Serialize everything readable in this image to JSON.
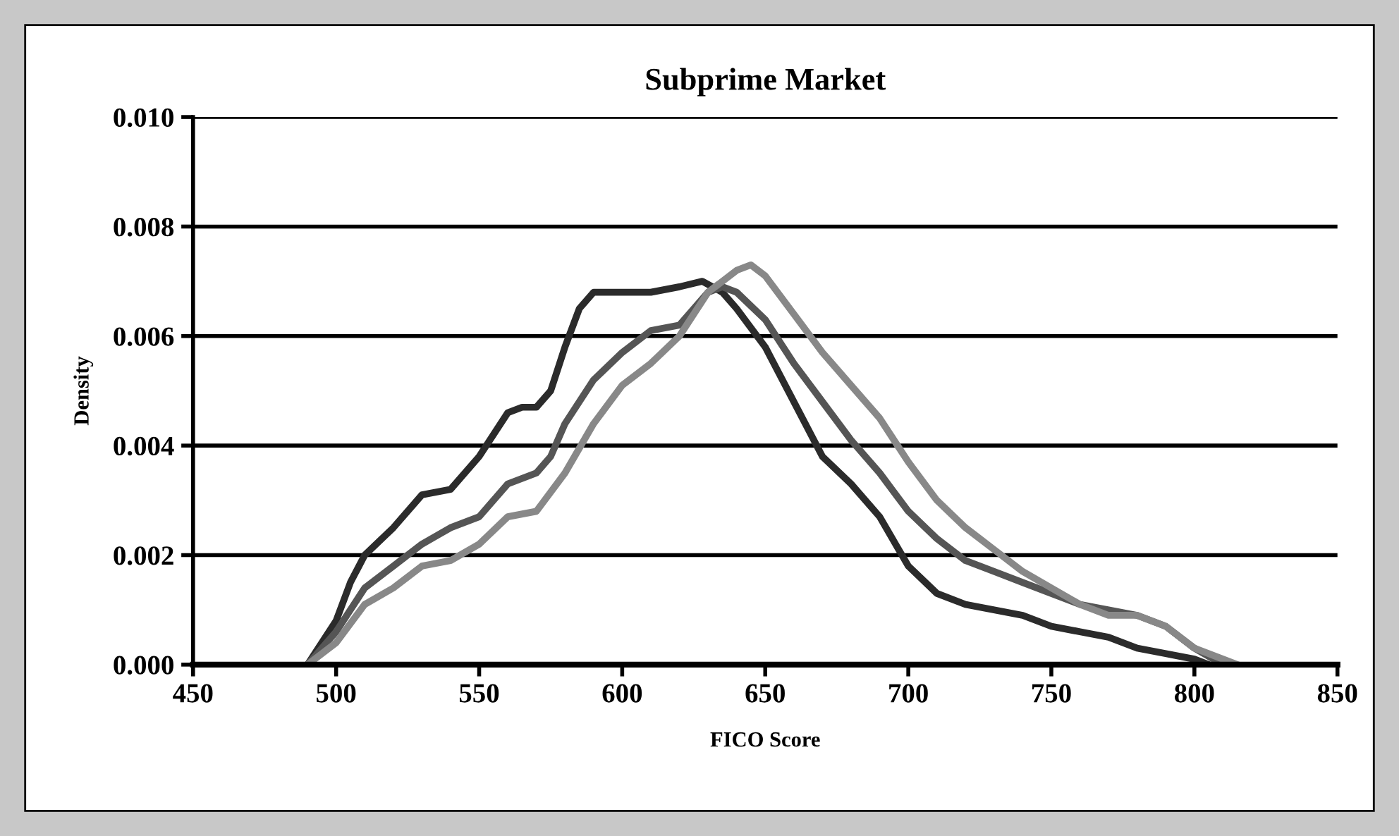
{
  "chart_data": {
    "type": "line",
    "title": "Subprime Market",
    "xlabel": "FICO Score",
    "ylabel": "Density",
    "xlim": [
      450,
      850
    ],
    "xticks": [
      450,
      500,
      550,
      600,
      650,
      700,
      750,
      800,
      850
    ],
    "ylim": [
      0,
      0.01
    ],
    "yticks": [
      {
        "value": 0,
        "label": "0.000"
      },
      {
        "value": 0.002,
        "label": "0.002"
      },
      {
        "value": 0.004,
        "label": "0.004"
      },
      {
        "value": 0.006,
        "label": "0.006"
      },
      {
        "value": 0.008,
        "label": "0.008"
      },
      {
        "value": 0.01,
        "label": "0.010"
      }
    ],
    "grid": "y",
    "marker": "none",
    "line_style": "solid",
    "series": [
      {
        "color": "#2b2b2b",
        "x": [
          490,
          500,
          505,
          510,
          520,
          530,
          540,
          550,
          560,
          565,
          570,
          575,
          580,
          585,
          590,
          600,
          610,
          620,
          628,
          635,
          640,
          650,
          660,
          670,
          680,
          690,
          700,
          710,
          720,
          730,
          740,
          750,
          760,
          770,
          780,
          790,
          800,
          805
        ],
        "values": [
          0,
          0.0008,
          0.0015,
          0.002,
          0.0025,
          0.0031,
          0.0032,
          0.0038,
          0.0046,
          0.0047,
          0.0047,
          0.005,
          0.0058,
          0.0065,
          0.0068,
          0.0068,
          0.0068,
          0.0069,
          0.007,
          0.0068,
          0.0065,
          0.0058,
          0.0048,
          0.0038,
          0.0033,
          0.0027,
          0.0018,
          0.0013,
          0.0011,
          0.001,
          0.0009,
          0.0007,
          0.0006,
          0.0005,
          0.0003,
          0.0002,
          0.0001,
          0
        ]
      },
      {
        "color": "#555555",
        "x": [
          490,
          500,
          510,
          520,
          530,
          540,
          550,
          560,
          570,
          575,
          580,
          590,
          600,
          610,
          620,
          630,
          635,
          640,
          650,
          660,
          670,
          680,
          690,
          700,
          710,
          720,
          730,
          740,
          750,
          760,
          770,
          780,
          790,
          800,
          810
        ],
        "values": [
          0,
          0.0006,
          0.0014,
          0.0018,
          0.0022,
          0.0025,
          0.0027,
          0.0033,
          0.0035,
          0.0038,
          0.0044,
          0.0052,
          0.0057,
          0.0061,
          0.0062,
          0.0068,
          0.0069,
          0.0068,
          0.0063,
          0.0055,
          0.0048,
          0.0041,
          0.0035,
          0.0028,
          0.0023,
          0.0019,
          0.0017,
          0.0015,
          0.0013,
          0.0011,
          0.001,
          0.0009,
          0.0007,
          0.0003,
          0
        ]
      },
      {
        "color": "#888888",
        "x": [
          490,
          500,
          510,
          520,
          530,
          540,
          550,
          560,
          570,
          580,
          590,
          600,
          610,
          620,
          630,
          640,
          645,
          650,
          660,
          670,
          680,
          690,
          700,
          710,
          720,
          730,
          740,
          750,
          760,
          770,
          780,
          790,
          800,
          810,
          815
        ],
        "values": [
          0,
          0.0004,
          0.0011,
          0.0014,
          0.0018,
          0.0019,
          0.0022,
          0.0027,
          0.0028,
          0.0035,
          0.0044,
          0.0051,
          0.0055,
          0.006,
          0.0068,
          0.0072,
          0.0073,
          0.0071,
          0.0064,
          0.0057,
          0.0051,
          0.0045,
          0.0037,
          0.003,
          0.0025,
          0.0021,
          0.0017,
          0.0014,
          0.0011,
          0.0009,
          0.0009,
          0.0007,
          0.0003,
          0.0001,
          0
        ]
      }
    ]
  }
}
